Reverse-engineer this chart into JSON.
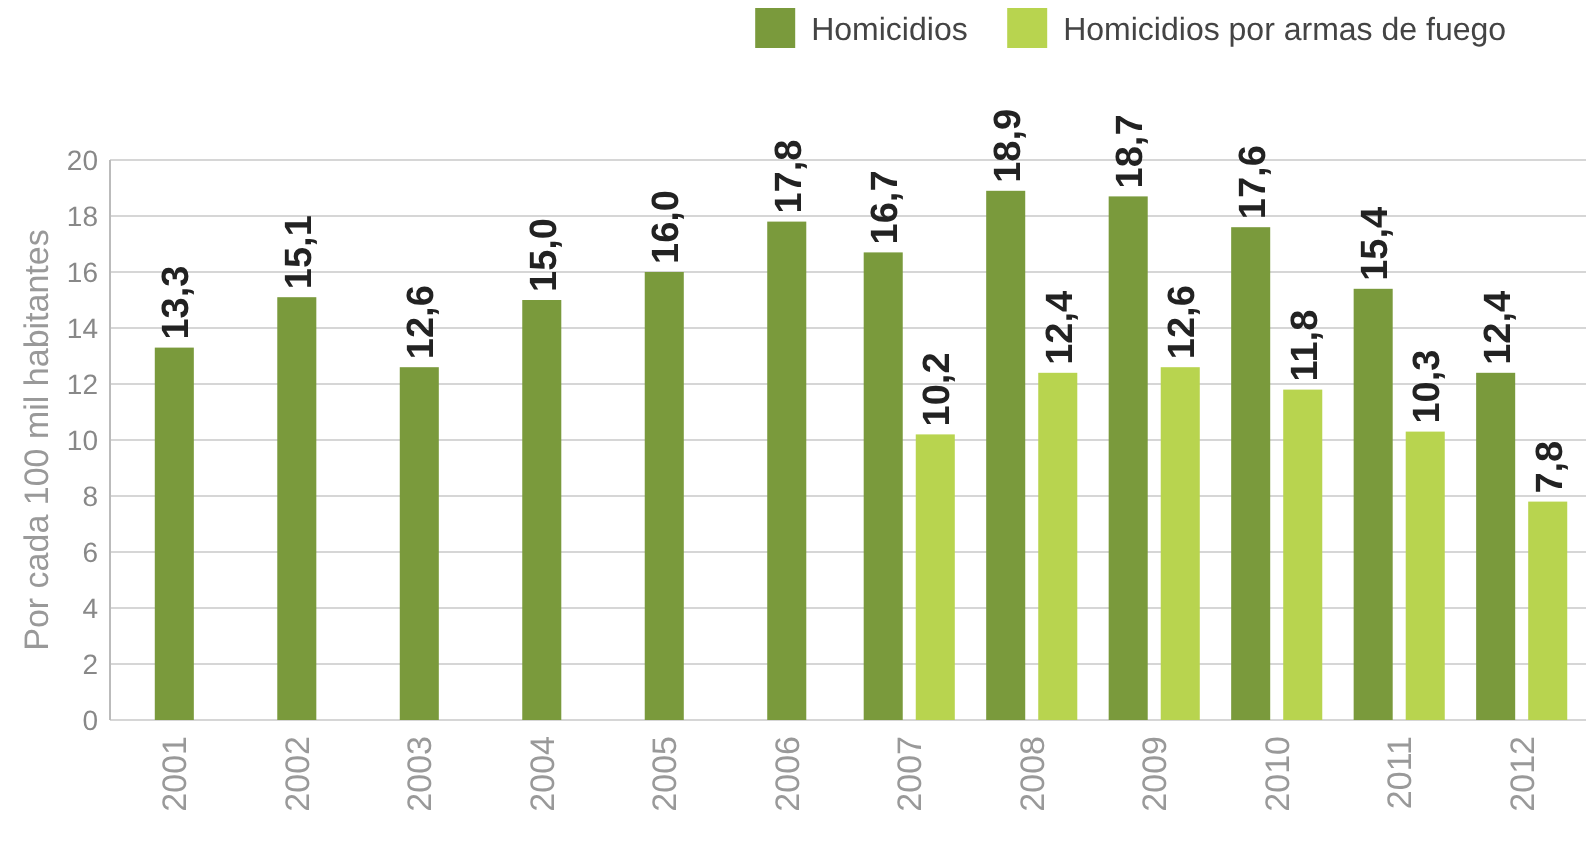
{
  "chart_data": {
    "type": "bar",
    "ylabel": "Por cada 100 mil habitantes",
    "categories": [
      "2001",
      "2002",
      "2003",
      "2004",
      "2005",
      "2006",
      "2007",
      "2008",
      "2009",
      "2010",
      "2011",
      "2012"
    ],
    "series": [
      {
        "name": "Homicidios",
        "color": "#7a9a3c",
        "values": [
          13.3,
          15.1,
          12.6,
          15.0,
          16.0,
          17.8,
          16.7,
          18.9,
          18.7,
          17.6,
          15.4,
          12.4
        ],
        "value_labels": [
          "13,3",
          "15,1",
          "12,6",
          "15,0",
          "16,0",
          "17,8",
          "16,7",
          "18,9",
          "18,7",
          "17,6",
          "15,4",
          "12,4"
        ]
      },
      {
        "name": "Homicidios por armas de fuego",
        "color": "#b8d44f",
        "values": [
          null,
          null,
          null,
          null,
          null,
          null,
          10.2,
          12.4,
          12.6,
          11.8,
          10.3,
          7.8
        ],
        "value_labels": [
          null,
          null,
          null,
          null,
          null,
          null,
          "10,2",
          "12,4",
          "12,6",
          "11,8",
          "10,3",
          "7,8"
        ]
      }
    ],
    "ylim": [
      0,
      20
    ],
    "yticks": [
      0,
      2,
      4,
      6,
      8,
      10,
      12,
      14,
      16,
      18,
      20
    ],
    "grid": "y",
    "legend": "top right"
  }
}
